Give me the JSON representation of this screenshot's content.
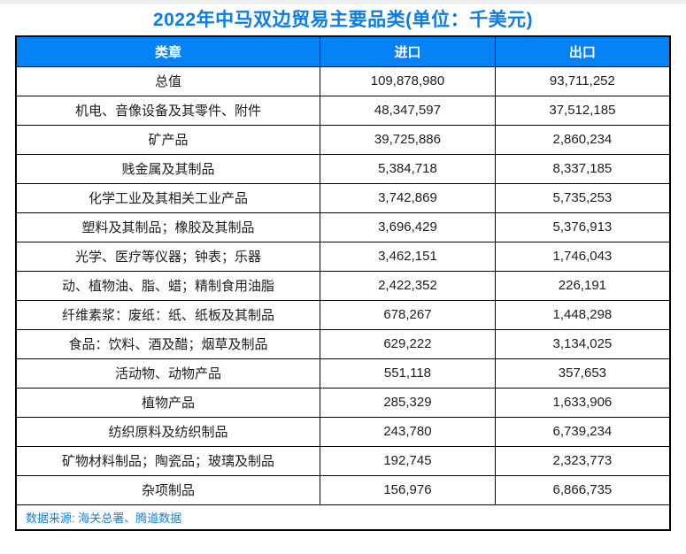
{
  "title": "2022年中马双边贸易主要品类(单位：千美元)",
  "source_note": "数据来源: 海关总署、腾道数据",
  "chart_data": {
    "type": "table",
    "title": "2022年中马双边贸易主要品类(单位：千美元)",
    "unit": "千美元",
    "columns": [
      "类章",
      "进口",
      "出口"
    ],
    "rows": [
      {
        "category": "总值",
        "import": 109878980,
        "export": 93711252
      },
      {
        "category": "机电、音像设备及其零件、附件",
        "import": 48347597,
        "export": 37512185
      },
      {
        "category": "矿产品",
        "import": 39725886,
        "export": 2860234
      },
      {
        "category": "贱金属及其制品",
        "import": 5384718,
        "export": 8337185
      },
      {
        "category": "化学工业及其相关工业产品",
        "import": 3742869,
        "export": 5735253
      },
      {
        "category": "塑料及其制品；橡胶及其制品",
        "import": 3696429,
        "export": 5376913
      },
      {
        "category": "光学、医疗等仪器；钟表；乐器",
        "import": 3462151,
        "export": 1746043
      },
      {
        "category": "动、植物油、脂、蜡；精制食用油脂",
        "import": 2422352,
        "export": 226191
      },
      {
        "category": "纤维素浆：废纸：纸、纸板及其制品",
        "import": 678267,
        "export": 1448298
      },
      {
        "category": "食品：饮料、酒及醋；烟草及制品",
        "import": 629222,
        "export": 3134025
      },
      {
        "category": "活动物、动物产品",
        "import": 551118,
        "export": 357653
      },
      {
        "category": "植物产品",
        "import": 285329,
        "export": 1633906
      },
      {
        "category": "纺织原料及纺织制品",
        "import": 243780,
        "export": 6739234
      },
      {
        "category": "矿物材料制品；陶瓷品；玻璃及制品",
        "import": 192745,
        "export": 2323773
      },
      {
        "category": "杂项制品",
        "import": 156976,
        "export": 6866735
      }
    ]
  },
  "colors": {
    "header_bg": "#0682f6",
    "header_text": "#ffffff",
    "title_text": "#0b7ce8",
    "source_text": "#1080e8",
    "border_color": "#000000"
  }
}
